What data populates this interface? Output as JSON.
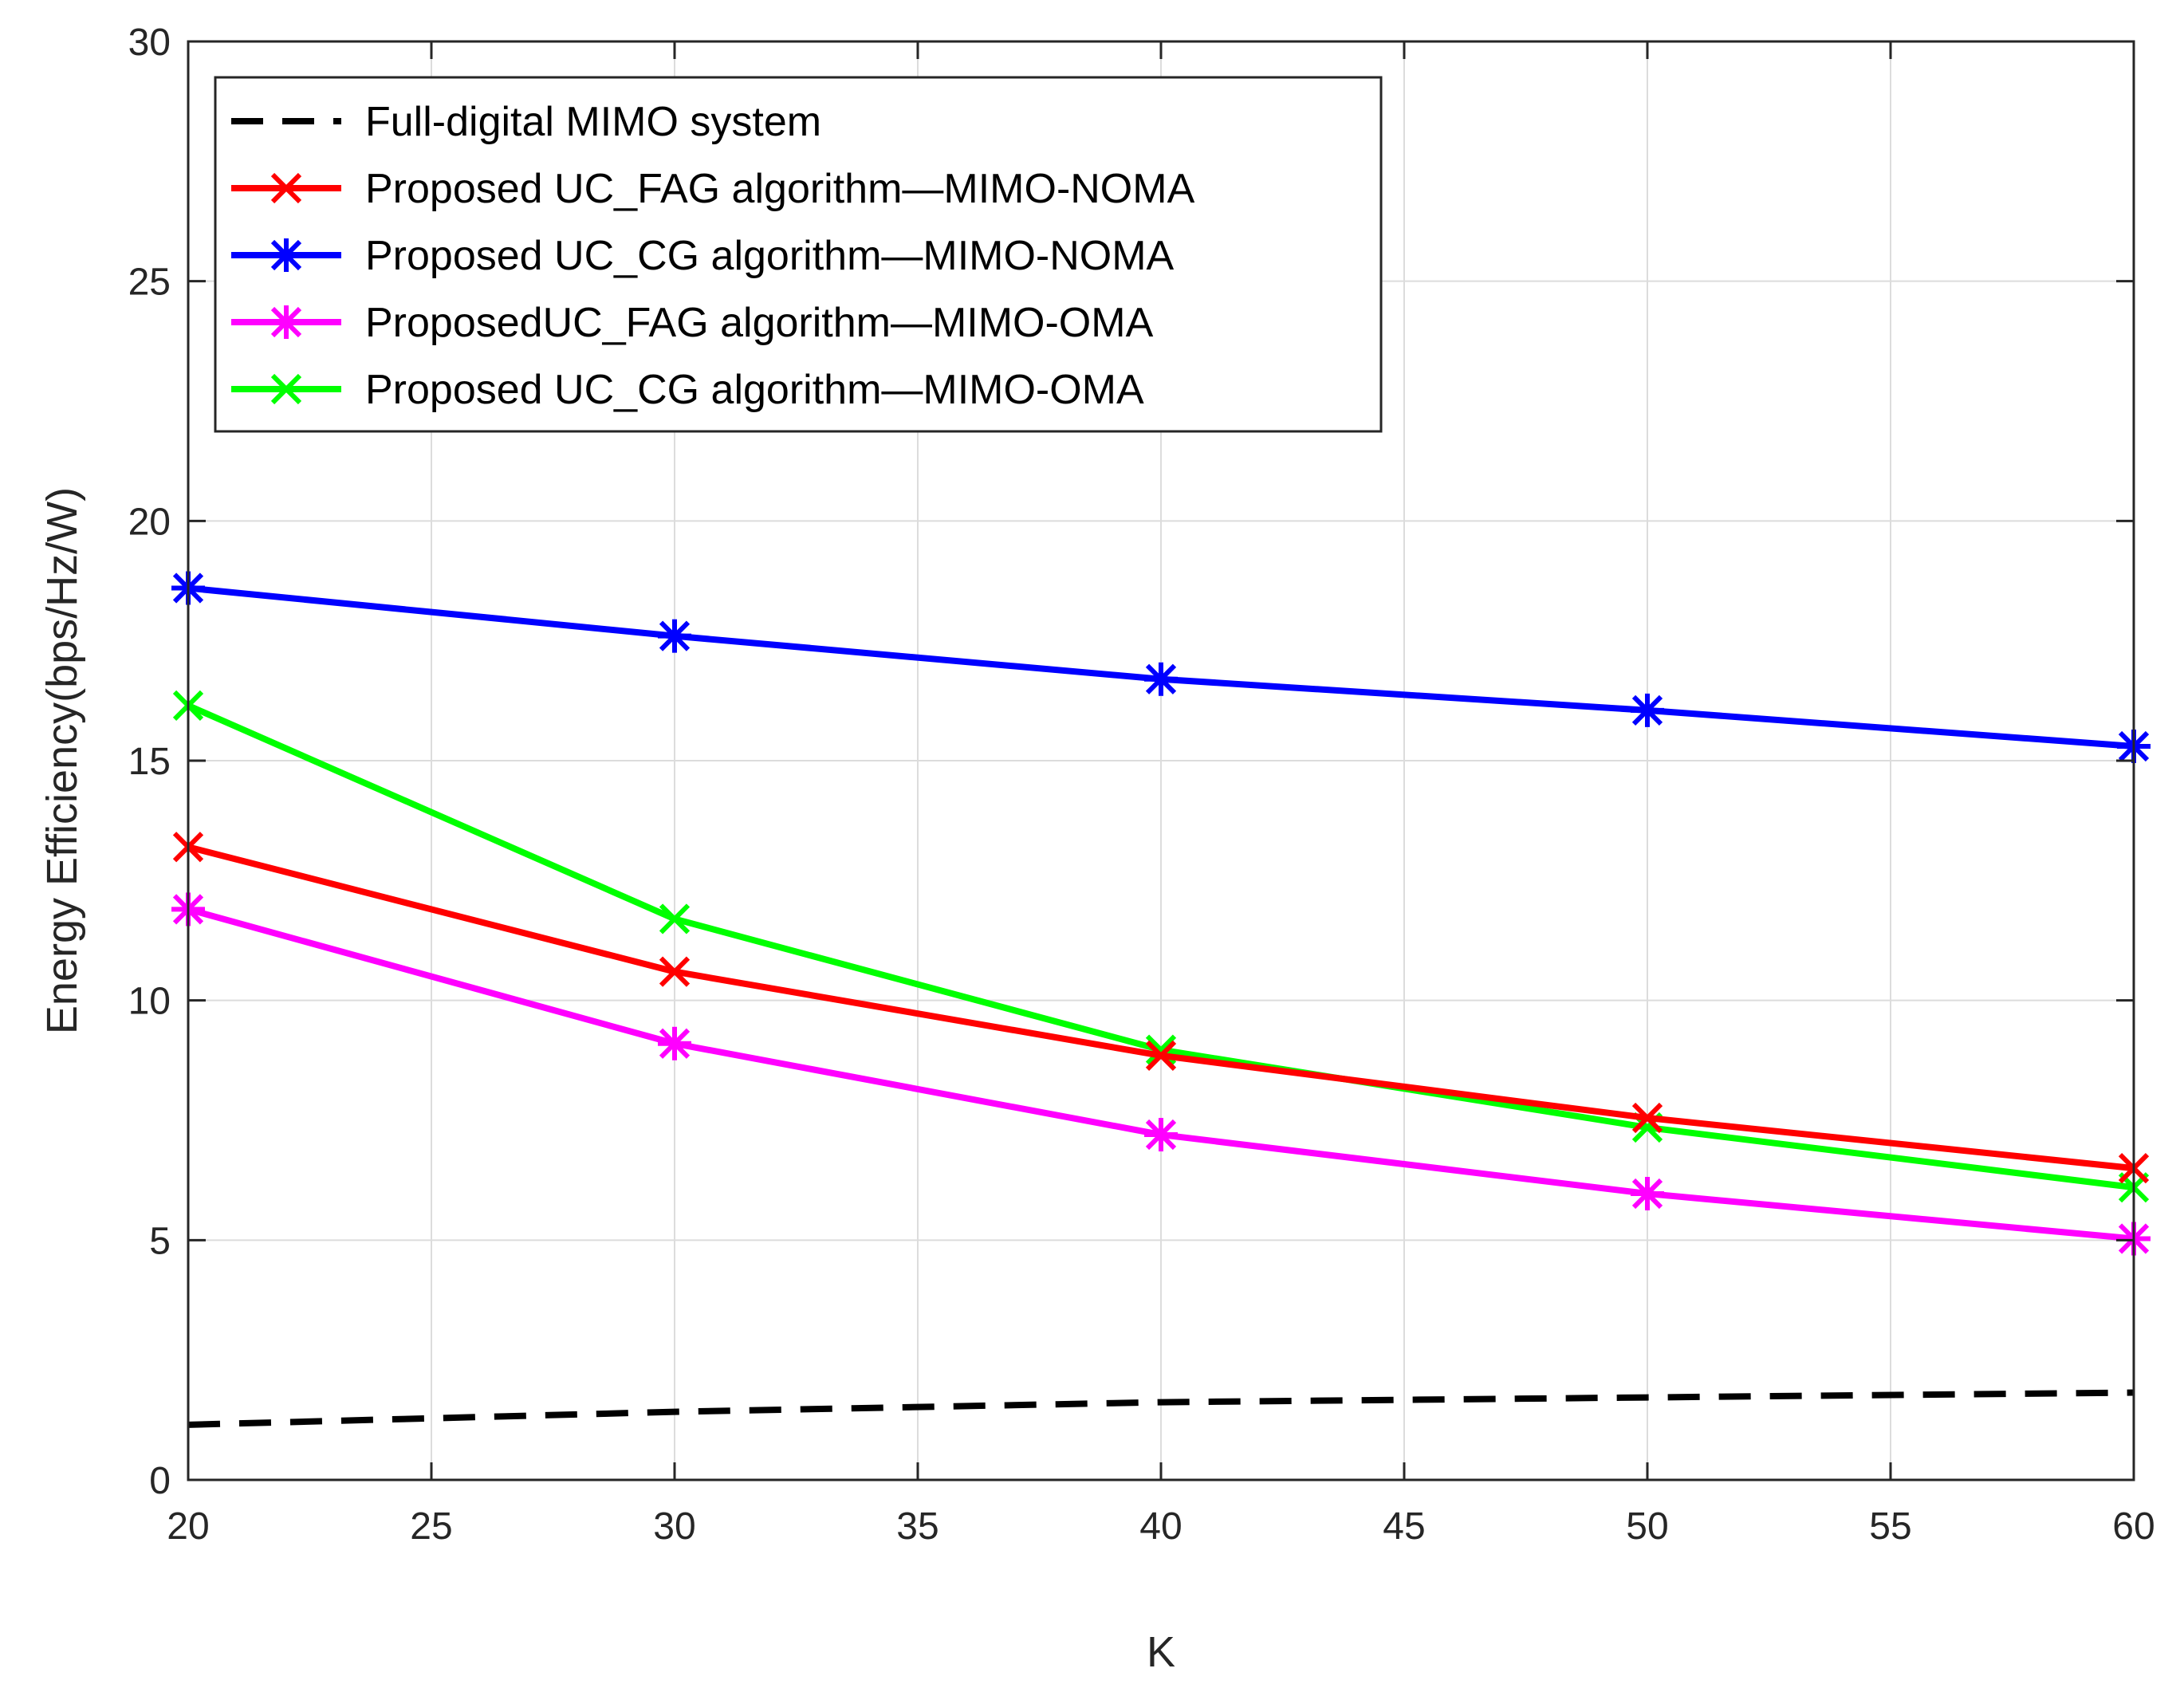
{
  "chart_data": {
    "type": "line",
    "title": "",
    "xlabel": "K",
    "ylabel": "Energy Efficiency(bps/Hz/W)",
    "xlim": [
      20,
      60
    ],
    "ylim": [
      0,
      30
    ],
    "xticks": [
      20,
      25,
      30,
      35,
      40,
      45,
      50,
      55,
      60
    ],
    "yticks": [
      0,
      5,
      10,
      15,
      20,
      25,
      30
    ],
    "grid": true,
    "legend_position": "top-left",
    "x": [
      20,
      30,
      40,
      50,
      60
    ],
    "series": [
      {
        "name": "Full-digital MIMO system",
        "color": "#000000",
        "line": "dashed",
        "marker": "none",
        "values": [
          1.15,
          1.42,
          1.62,
          1.72,
          1.82
        ]
      },
      {
        "name": "Proposed UC_FAG algorithm—MIMO-NOMA",
        "color": "#ff0000",
        "line": "solid",
        "marker": "x",
        "values": [
          13.2,
          10.6,
          8.85,
          7.55,
          6.5
        ]
      },
      {
        "name": "Proposed UC_CG algorithm—MIMO-NOMA",
        "color": "#0000ff",
        "line": "solid",
        "marker": "asterisk",
        "values": [
          18.6,
          17.6,
          16.7,
          16.05,
          15.3
        ]
      },
      {
        "name": "ProposedUC_FAG algorithm—MIMO-OMA",
        "color": "#ff00ff",
        "line": "solid",
        "marker": "asterisk",
        "values": [
          11.9,
          9.1,
          7.2,
          5.97,
          5.03
        ]
      },
      {
        "name": "Proposed UC_CG algorithm—MIMO-OMA",
        "color": "#00ff00",
        "line": "solid",
        "marker": "x",
        "values": [
          16.15,
          11.7,
          8.97,
          7.35,
          6.1
        ]
      }
    ]
  }
}
